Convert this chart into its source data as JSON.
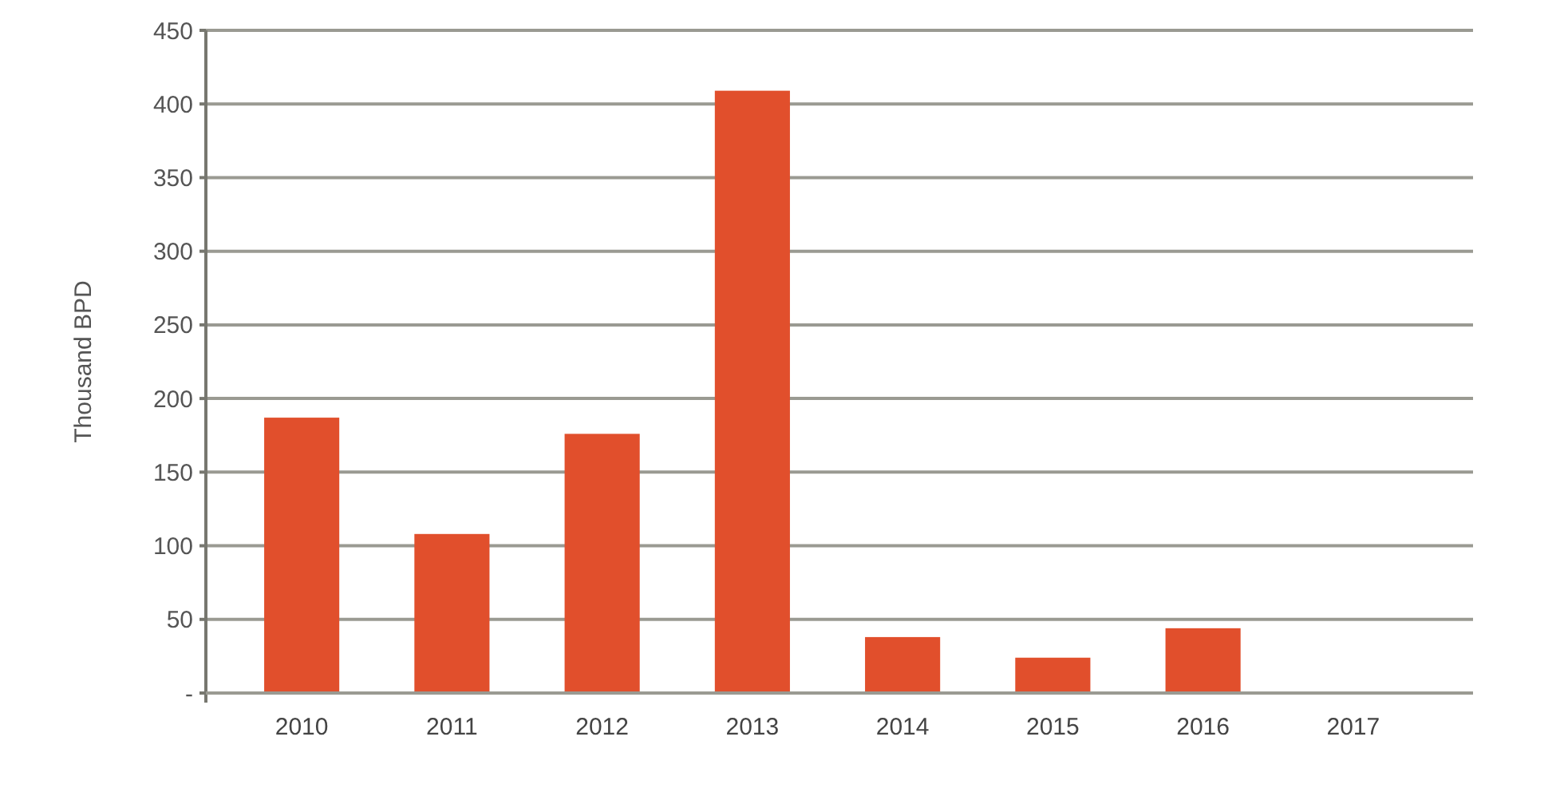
{
  "chart_data": {
    "type": "bar",
    "ylabel": "Thousand BPD",
    "categories": [
      "2010",
      "2011",
      "2012",
      "2013",
      "2014",
      "2015",
      "2016",
      "2017"
    ],
    "values": [
      187,
      108,
      176,
      409,
      38,
      24,
      44,
      null
    ],
    "color": "#e14f2c",
    "ylim": [
      0,
      450
    ],
    "yticks": [
      {
        "value": 0,
        "label": "-"
      },
      50,
      100,
      150,
      200,
      250,
      300,
      350,
      400,
      450
    ],
    "grid": "y"
  }
}
